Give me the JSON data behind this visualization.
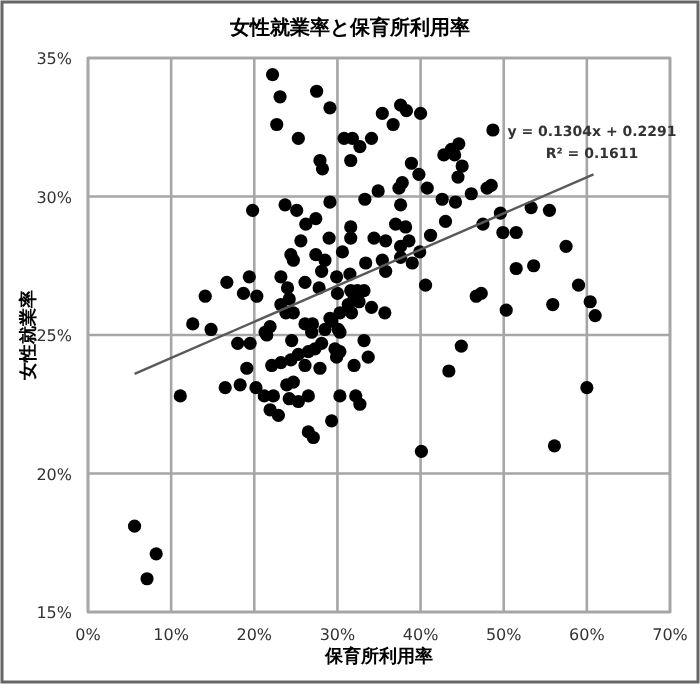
{
  "chart_data": {
    "type": "scatter",
    "title": "女性就業率と保育所利用率",
    "xlabel": "保育所利用率",
    "ylabel": "女性就業率",
    "annotations": [
      "y = 0.1304x + 0.2291",
      "R² = 0.1611"
    ],
    "xlim": [
      0,
      70
    ],
    "ylim": [
      15,
      35
    ],
    "xticks": [
      {
        "value": 0,
        "label": "0%"
      },
      {
        "value": 10,
        "label": "10%"
      },
      {
        "value": 20,
        "label": "20%"
      },
      {
        "value": 30,
        "label": "30%"
      },
      {
        "value": 40,
        "label": "40%"
      },
      {
        "value": 50,
        "label": "50%"
      },
      {
        "value": 60,
        "label": "60%"
      },
      {
        "value": 70,
        "label": "70%"
      }
    ],
    "yticks": [
      {
        "value": 15,
        "label": "15%"
      },
      {
        "value": 20,
        "label": "20%"
      },
      {
        "value": 25,
        "label": "25%"
      },
      {
        "value": 30,
        "label": "30%"
      },
      {
        "value": 35,
        "label": "35%"
      }
    ],
    "grid": true,
    "marker": "circle",
    "series": [
      {
        "color": "#000000",
        "x": [
          22.2,
          23.1,
          27.5,
          29.1,
          22.7,
          25.3,
          30.8,
          31.8,
          32.7,
          34.1,
          35.4,
          36.7,
          37.6,
          27.9,
          28.2,
          31.6,
          19.8,
          23.7,
          25.1,
          29.1,
          33.3,
          34.9,
          26.2,
          27.4,
          31.6,
          31.6,
          29.0,
          25.6,
          34.4,
          35.8,
          37.0,
          30.6,
          24.4,
          24.7,
          27.4,
          28.5,
          28.1,
          33.4,
          35.4,
          37.6,
          16.7,
          19.4,
          23.2,
          26.1,
          29.9,
          31.5,
          14.1,
          18.7,
          20.3,
          24.0,
          24.2,
          27.8,
          30.0,
          31.6,
          32.4,
          32.0,
          33.2,
          23.2,
          23.8,
          24.7,
          31.3,
          32.6,
          34.1,
          35.7,
          30.3,
          31.7,
          29.1,
          12.6,
          14.8,
          21.3,
          21.9,
          26.1,
          27.0,
          26.9,
          28.5,
          29.3,
          30.1,
          21.5,
          30.3,
          18.0,
          19.5,
          24.5,
          25.3,
          26.5,
          27.3,
          28.1,
          29.7,
          29.9,
          30.3,
          33.2,
          33.7,
          19.1,
          22.1,
          23.2,
          24.4,
          26.1,
          27.9,
          32.0,
          11.1,
          16.5,
          18.3,
          20.2,
          21.2,
          22.3,
          23.9,
          24.7,
          24.2,
          25.3,
          26.5,
          21.9,
          22.9,
          30.3,
          32.2,
          32.7,
          29.3,
          26.5,
          27.1,
          5.6,
          8.2,
          7.1,
          44.9,
          43.4,
          40.1,
          60.0,
          56.1,
          38.3,
          40.0,
          48.7,
          43.7,
          44.6,
          42.8,
          44.1,
          45.0,
          38.9,
          39.8,
          44.5,
          37.8,
          37.4,
          40.8,
          46.1,
          48.0,
          48.5,
          42.6,
          44.2,
          37.6,
          49.6,
          53.3,
          55.5,
          38.2,
          43.0,
          47.5,
          41.2,
          49.9,
          51.5,
          38.6,
          37.6,
          39.9,
          39.0,
          57.5,
          35.8,
          51.5,
          53.6,
          59.0,
          40.6,
          46.7,
          47.3,
          50.3,
          55.9,
          60.4,
          61.0
        ],
        "values": [
          34.4,
          33.6,
          33.8,
          33.2,
          32.6,
          32.1,
          32.1,
          32.1,
          31.8,
          32.1,
          33.0,
          32.6,
          33.3,
          31.3,
          31.0,
          31.3,
          29.5,
          29.7,
          29.5,
          29.8,
          29.9,
          30.2,
          29.0,
          29.2,
          28.9,
          28.5,
          28.5,
          28.4,
          28.5,
          28.4,
          29.0,
          28.0,
          27.9,
          27.7,
          27.9,
          27.7,
          27.3,
          27.6,
          27.7,
          27.8,
          26.9,
          27.1,
          27.1,
          26.9,
          27.1,
          27.2,
          26.4,
          26.5,
          26.4,
          26.7,
          26.3,
          26.7,
          26.5,
          26.6,
          26.6,
          26.4,
          26.6,
          26.1,
          25.8,
          25.8,
          26.1,
          26.2,
          26.0,
          25.8,
          25.8,
          25.8,
          25.6,
          25.4,
          25.2,
          25.1,
          25.3,
          25.4,
          25.4,
          25.1,
          25.2,
          25.5,
          25.2,
          25.0,
          25.1,
          24.7,
          24.7,
          24.8,
          24.3,
          24.4,
          24.5,
          24.7,
          24.5,
          24.2,
          24.4,
          24.8,
          24.2,
          23.8,
          23.9,
          24.0,
          24.1,
          23.9,
          23.8,
          23.9,
          22.8,
          23.1,
          23.2,
          23.1,
          22.8,
          22.8,
          23.2,
          23.3,
          22.7,
          22.6,
          22.8,
          22.3,
          22.1,
          22.8,
          22.8,
          22.5,
          21.9,
          21.5,
          21.3,
          18.1,
          17.1,
          16.2,
          24.6,
          23.7,
          20.8,
          23.1,
          21.0,
          33.1,
          33.0,
          32.4,
          31.7,
          31.9,
          31.5,
          31.5,
          31.1,
          31.2,
          30.8,
          30.7,
          30.5,
          30.3,
          30.3,
          30.1,
          30.3,
          30.4,
          29.9,
          29.8,
          29.7,
          29.4,
          29.6,
          29.5,
          28.9,
          29.1,
          29.0,
          28.6,
          28.7,
          28.7,
          28.4,
          28.2,
          28.0,
          27.6,
          28.2,
          27.3,
          27.4,
          27.5,
          26.8,
          26.8,
          26.4,
          26.5,
          25.9,
          26.1,
          26.2,
          25.7
        ]
      },
      {
        "type": "line",
        "marker": "none",
        "color": "#595959",
        "x": [
          5.6,
          60.8
        ],
        "values": [
          23.6,
          30.8
        ]
      }
    ]
  }
}
